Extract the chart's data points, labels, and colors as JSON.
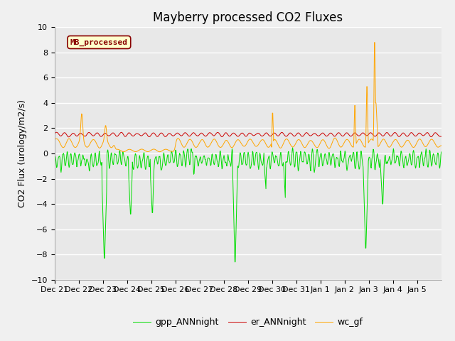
{
  "title": "Mayberry processed CO2 Fluxes",
  "ylabel": "CO2 Flux (urology/m2/s)",
  "ylim": [
    -10,
    10
  ],
  "yticks": [
    -10,
    -8,
    -6,
    -4,
    -2,
    0,
    2,
    4,
    6,
    8,
    10
  ],
  "fig_bg_color": "#f0f0f0",
  "plot_bg_color": "#e8e8e8",
  "gpp_color": "#00dd00",
  "er_color": "#cc0000",
  "wc_color": "#ffa500",
  "legend_labels": [
    "gpp_ANNnight",
    "er_ANNnight",
    "wc_gf"
  ],
  "inset_label": "MB_processed",
  "inset_bg": "#ffffcc",
  "inset_border": "#880000",
  "x_tick_labels": [
    "Dec 21",
    "Dec 22",
    "Dec 23",
    "Dec 24",
    "Dec 25",
    "Dec 26",
    "Dec 27",
    "Dec 28",
    "Dec 29",
    "Dec 30",
    "Dec 31",
    "Jan 1",
    "Jan 2",
    "Jan 3",
    "Jan 4",
    "Jan 5"
  ],
  "n_points": 960,
  "title_fontsize": 12,
  "axis_fontsize": 9,
  "tick_fontsize": 8,
  "legend_fontsize": 9
}
